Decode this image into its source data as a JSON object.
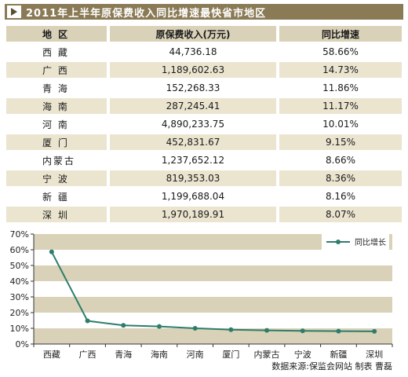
{
  "title": "2011年上半年原保费收入同比增速最快省市地区",
  "table": {
    "headers": [
      "地 区",
      "原保费收入(万元)",
      "同比增速"
    ],
    "rows": [
      [
        "西 藏",
        "44,736.18",
        "58.66%"
      ],
      [
        "广 西",
        "1,189,602.63",
        "14.73%"
      ],
      [
        "青 海",
        "152,268.33",
        "11.86%"
      ],
      [
        "海 南",
        "287,245.41",
        "11.17%"
      ],
      [
        "河 南",
        "4,890,233.75",
        "10.01%"
      ],
      [
        "厦 门",
        "452,831.67",
        "9.15%"
      ],
      [
        "内蒙古",
        "1,237,652.12",
        "8.66%"
      ],
      [
        "宁 波",
        "819,353.03",
        "8.36%"
      ],
      [
        "新 疆",
        "1,199,688.04",
        "8.16%"
      ],
      [
        "深 圳",
        "1,970,189.91",
        "8.07%"
      ]
    ]
  },
  "chart_data": {
    "type": "line",
    "categories": [
      "西藏",
      "广西",
      "青海",
      "海南",
      "河南",
      "厦门",
      "内蒙古",
      "宁波",
      "新疆",
      "深圳"
    ],
    "series": [
      {
        "name": "同比增长",
        "values": [
          58.66,
          14.73,
          11.86,
          11.17,
          10.01,
          9.15,
          8.66,
          8.36,
          8.16,
          8.07
        ],
        "color": "#2e7d6b"
      }
    ],
    "yticks": [
      "70%",
      "60%",
      "50%",
      "40%",
      "30%",
      "20%",
      "10%",
      "0%"
    ],
    "ylim": [
      0,
      70
    ],
    "grid": "horizontal bands",
    "legend_position": "top-right",
    "band_colors": [
      "#d9d2b8",
      "#ffffff"
    ]
  },
  "source": "数据来源:保监会网站  制表 曹磊"
}
